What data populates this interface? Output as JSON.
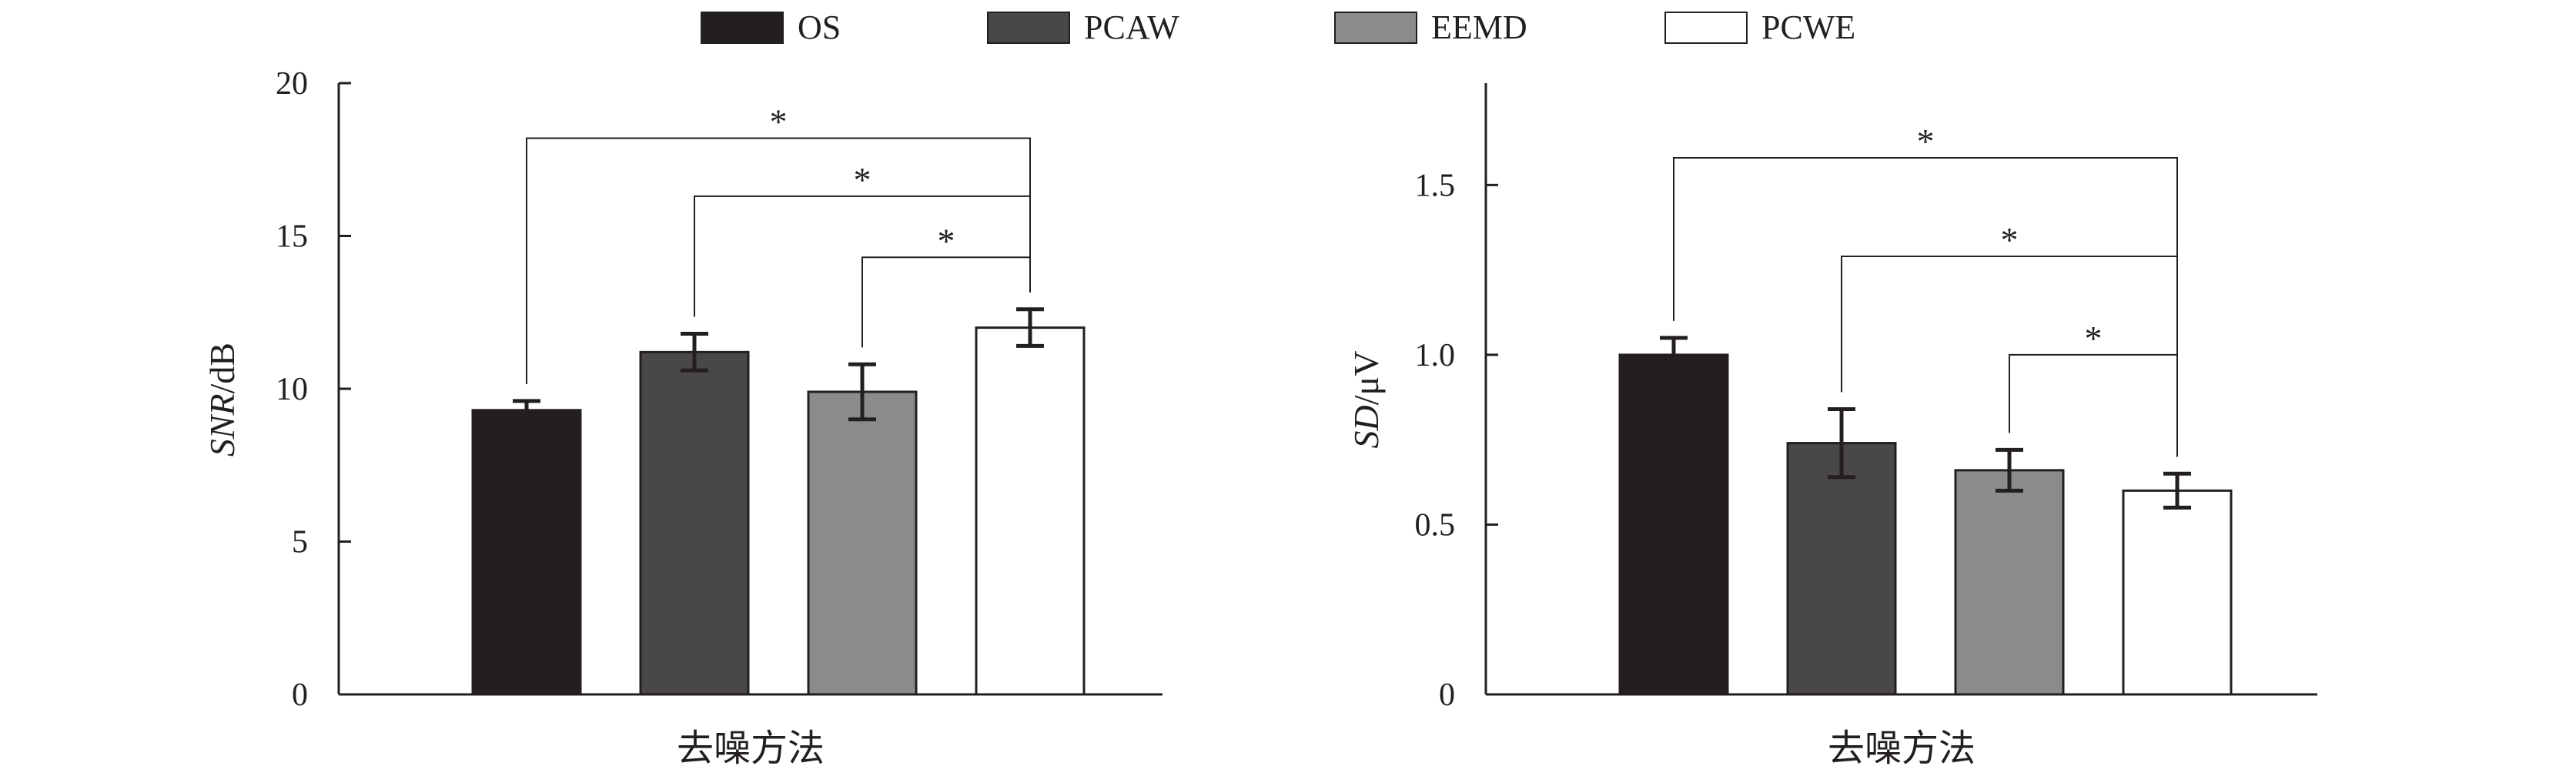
{
  "legend": [
    {
      "label": "OS",
      "color": "#231f20"
    },
    {
      "label": "PCAW",
      "color": "#4a4748"
    },
    {
      "label": "EEMD",
      "color": "#8c8b8b"
    },
    {
      "label": "PCWE",
      "color": "#ffffff"
    }
  ],
  "chart_data": [
    {
      "type": "bar",
      "title": "",
      "xlabel": "去噪方法",
      "ylabel": "SNR/dB",
      "ylabel_italic_part": "SNR",
      "ylabel_unit": "/dB",
      "ylim": [
        0,
        20
      ],
      "yticks": [
        0,
        5,
        10,
        15,
        20
      ],
      "ytick_labels": [
        "0",
        "5",
        "10",
        "15",
        "20"
      ],
      "categories": [
        "OS",
        "PCAW",
        "EEMD",
        "PCWE"
      ],
      "values": [
        9.3,
        11.2,
        9.9,
        12.0
      ],
      "errors": [
        0.3,
        0.6,
        0.9,
        0.6
      ],
      "significance": [
        {
          "from": 0,
          "to": 3,
          "level": 18.2,
          "label": "*"
        },
        {
          "from": 1,
          "to": 3,
          "level": 16.3,
          "label": "*"
        },
        {
          "from": 2,
          "to": 3,
          "level": 14.3,
          "label": "*"
        }
      ]
    },
    {
      "type": "bar",
      "title": "",
      "xlabel": "去噪方法",
      "ylabel": "SD/μV",
      "ylabel_italic_part": "SD",
      "ylabel_unit": "/μV",
      "ylim": [
        0,
        1.8
      ],
      "yticks": [
        0,
        0.5,
        1.0,
        1.5
      ],
      "ytick_labels": [
        "0",
        "0.5",
        "1.0",
        "1.5"
      ],
      "categories": [
        "OS",
        "PCAW",
        "EEMD",
        "PCWE"
      ],
      "values": [
        1.0,
        0.74,
        0.66,
        0.6
      ],
      "errors": [
        0.05,
        0.1,
        0.06,
        0.05
      ],
      "significance": [
        {
          "from": 0,
          "to": 3,
          "level": 1.58,
          "label": "*"
        },
        {
          "from": 1,
          "to": 3,
          "level": 1.29,
          "label": "*"
        },
        {
          "from": 2,
          "to": 3,
          "level": 1.0,
          "label": "*"
        }
      ]
    }
  ]
}
